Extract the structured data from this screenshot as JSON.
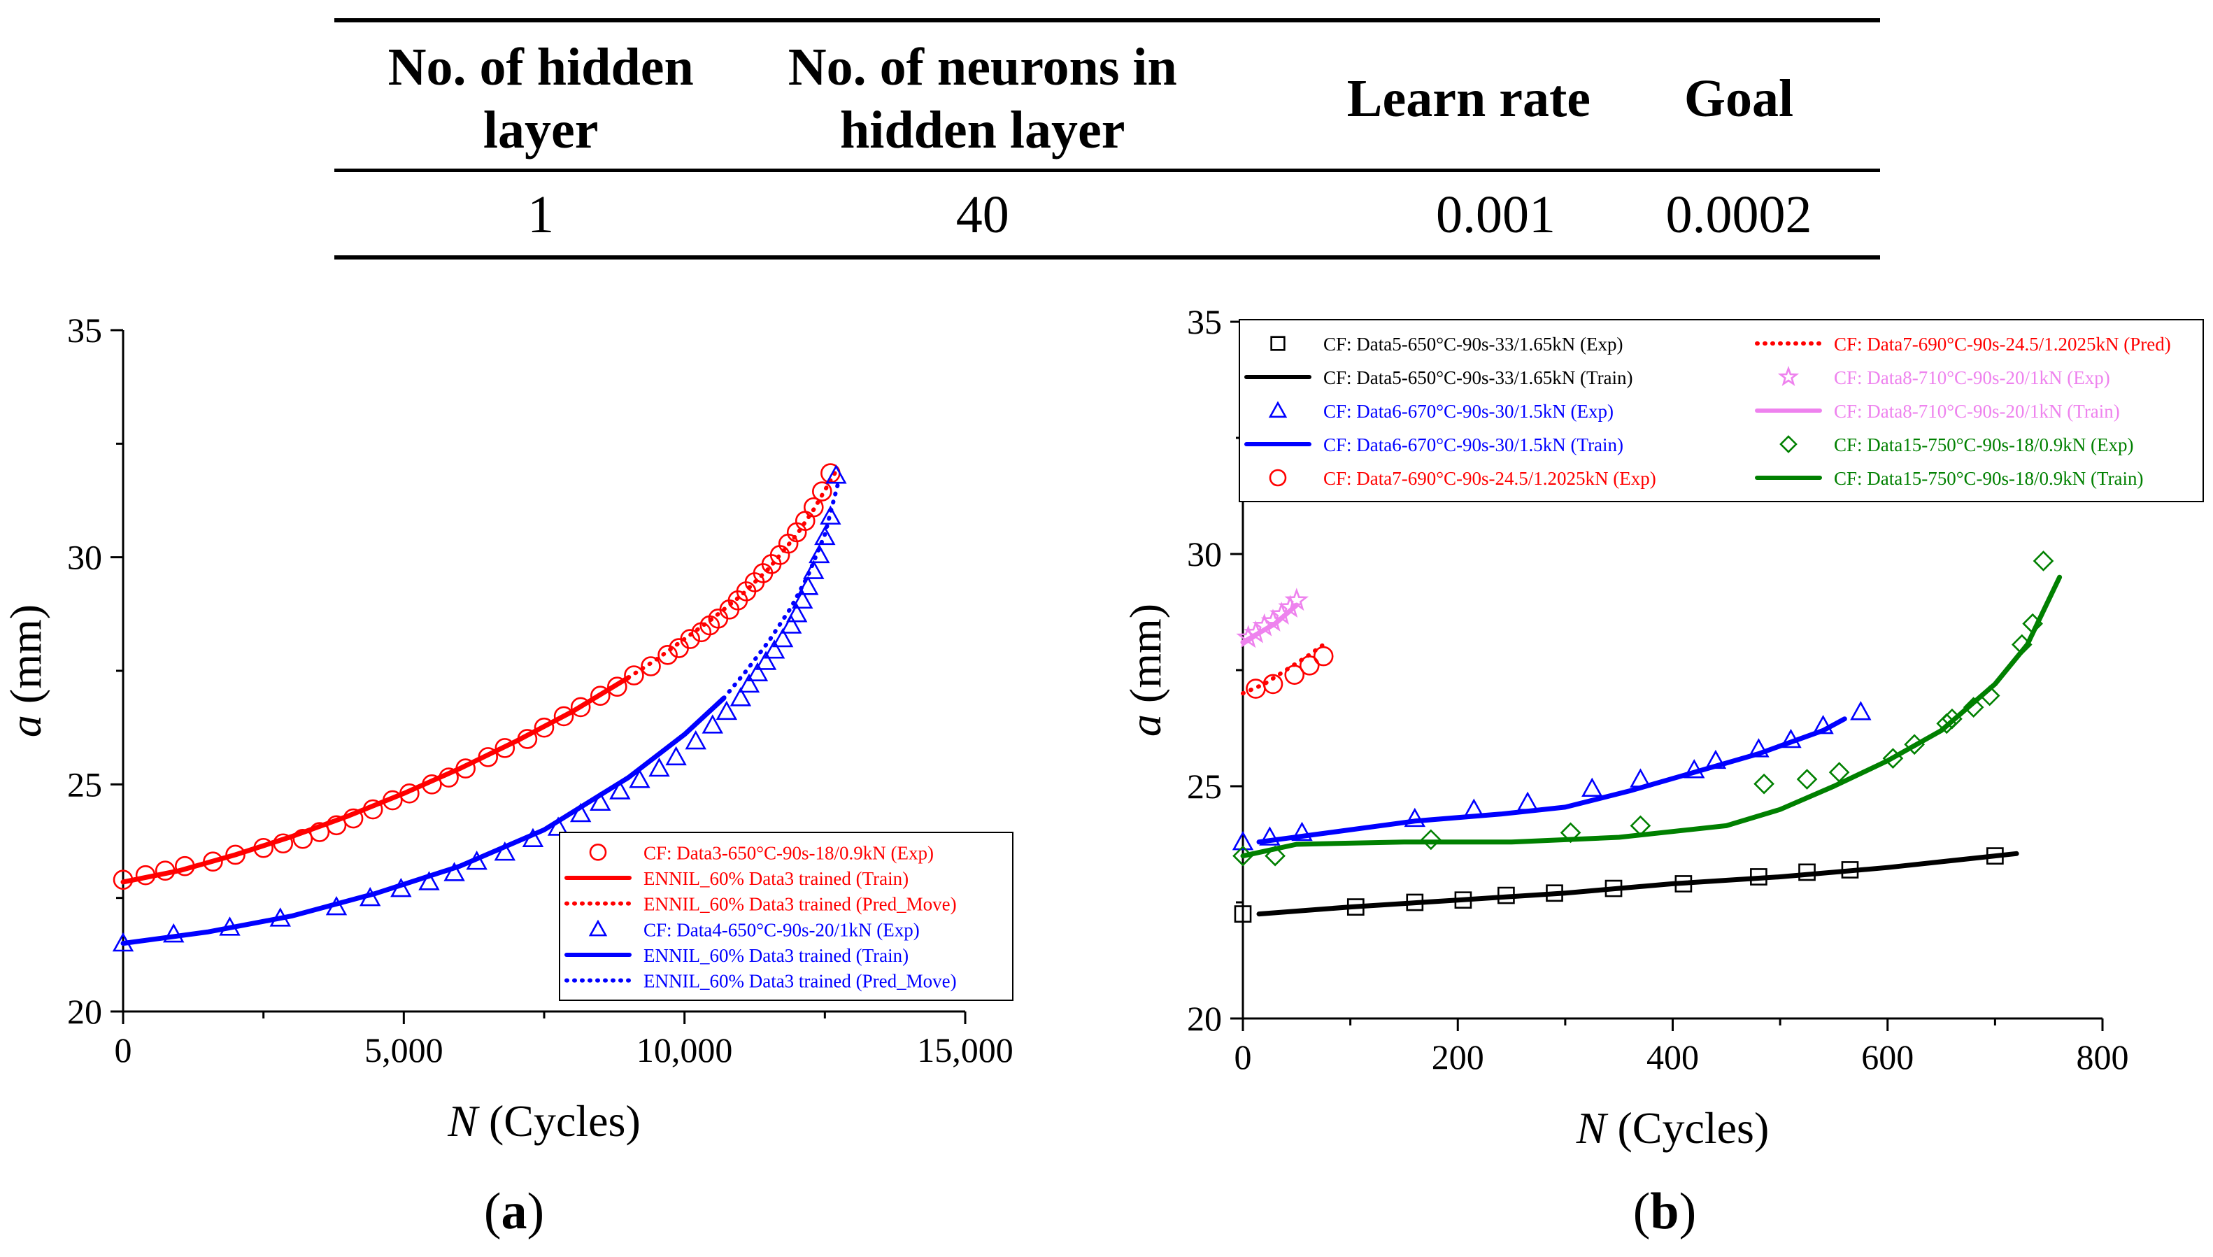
{
  "table": {
    "headers": [
      "No. of hidden layer",
      "No. of neurons in hidden layer",
      "Learn rate",
      "Goal"
    ],
    "row": [
      "1",
      "40",
      "0.001",
      "0.0002"
    ]
  },
  "chart_data": [
    {
      "type": "line",
      "panel_label": "(a)",
      "xlabel_var": "N",
      "xlabel_unit": "(Cycles)",
      "ylabel_var": "a",
      "ylabel_unit": "(mm)",
      "xlim": [
        0,
        15000
      ],
      "ylim": [
        20,
        35
      ],
      "xticks": [
        0,
        5000,
        10000,
        15000
      ],
      "xtick_labels": [
        "0",
        "5,000",
        "10,000",
        "15,000"
      ],
      "yticks": [
        20,
        25,
        30,
        35
      ],
      "ytick_labels": [
        "20",
        "25",
        "30",
        "35"
      ],
      "legend_position": "bottom-right",
      "series": [
        {
          "name": "CF: Data3-650°C-90s-18/0.9kN (Exp)",
          "kind": "marker",
          "marker": "circle",
          "color": "#ff0000",
          "x": [
            0,
            400,
            750,
            1100,
            1600,
            2000,
            2500,
            2850,
            3200,
            3500,
            3800,
            4100,
            4450,
            4800,
            5100,
            5500,
            5800,
            6100,
            6500,
            6800,
            7200,
            7500,
            7850,
            8150,
            8500,
            8800,
            9100,
            9400,
            9700,
            9900,
            10100,
            10300,
            10450,
            10600,
            10800,
            10950,
            11100,
            11250,
            11400,
            11550,
            11700,
            11850,
            12000,
            12150,
            12300,
            12450,
            12600
          ],
          "y": [
            22.9,
            23.0,
            23.1,
            23.2,
            23.3,
            23.45,
            23.6,
            23.7,
            23.8,
            23.95,
            24.1,
            24.25,
            24.45,
            24.65,
            24.8,
            25.0,
            25.15,
            25.35,
            25.6,
            25.8,
            26.0,
            26.25,
            26.5,
            26.7,
            26.95,
            27.15,
            27.4,
            27.6,
            27.85,
            28.0,
            28.2,
            28.35,
            28.5,
            28.65,
            28.85,
            29.05,
            29.25,
            29.45,
            29.65,
            29.85,
            30.05,
            30.3,
            30.55,
            30.8,
            31.1,
            31.45,
            31.85
          ]
        },
        {
          "name": "ENNIL_60% Data3 trained (Train)",
          "kind": "line",
          "style": "solid",
          "color": "#ff0000",
          "x": [
            0,
            1000,
            2000,
            3000,
            4000,
            5000,
            6000,
            7000,
            8000,
            9000
          ],
          "y": [
            22.85,
            23.1,
            23.45,
            23.85,
            24.3,
            24.8,
            25.35,
            25.95,
            26.6,
            27.35
          ]
        },
        {
          "name": "ENNIL_60% Data3 trained (Pred_Move)",
          "kind": "line",
          "style": "dotted",
          "color": "#ff0000",
          "x": [
            9000,
            9500,
            10000,
            10500,
            11000,
            11500,
            12000,
            12300,
            12700
          ],
          "y": [
            27.35,
            27.75,
            28.2,
            28.65,
            29.15,
            29.75,
            30.5,
            31.05,
            31.9
          ]
        },
        {
          "name": "CF: Data4-650°C-90s-20/1kN (Exp)",
          "kind": "marker",
          "marker": "triangle",
          "color": "#0000ff",
          "x": [
            0,
            900,
            1900,
            2800,
            3800,
            4400,
            4950,
            5450,
            5900,
            6300,
            6800,
            7300,
            7750,
            8150,
            8500,
            8850,
            9200,
            9550,
            9850,
            10200,
            10500,
            10750,
            11000,
            11150,
            11300,
            11450,
            11600,
            11750,
            11900,
            12000,
            12100,
            12200,
            12300,
            12400,
            12500,
            12600,
            12700
          ],
          "y": [
            21.5,
            21.7,
            21.85,
            22.05,
            22.3,
            22.5,
            22.7,
            22.85,
            23.05,
            23.3,
            23.5,
            23.8,
            24.05,
            24.35,
            24.6,
            24.85,
            25.1,
            25.35,
            25.6,
            25.95,
            26.3,
            26.6,
            26.9,
            27.2,
            27.45,
            27.7,
            27.95,
            28.2,
            28.5,
            28.75,
            29.05,
            29.35,
            29.7,
            30.05,
            30.45,
            30.9,
            31.8
          ]
        },
        {
          "name": "ENNIL_60% Data3 trained (Train)",
          "kind": "line",
          "style": "solid",
          "color": "#0000ff",
          "x": [
            0,
            1500,
            3000,
            4500,
            6000,
            7500,
            9000,
            10000,
            10700
          ],
          "y": [
            21.5,
            21.75,
            22.1,
            22.6,
            23.2,
            24.0,
            25.15,
            26.1,
            26.9
          ]
        },
        {
          "name": "ENNIL_60% Data3 trained (Pred_Move)",
          "kind": "line",
          "style": "dotted",
          "color": "#0000ff",
          "x": [
            10700,
            11100,
            11500,
            11900,
            12200,
            12500,
            12750
          ],
          "y": [
            26.9,
            27.5,
            28.15,
            28.9,
            29.6,
            30.5,
            31.7
          ]
        }
      ]
    },
    {
      "type": "line",
      "panel_label": "(b)",
      "xlabel_var": "N",
      "xlabel_unit": "(Cycles)",
      "ylabel_var": "a",
      "ylabel_unit": "(mm)",
      "xlim": [
        0,
        800
      ],
      "ylim": [
        20,
        35
      ],
      "xticks": [
        0,
        200,
        400,
        600,
        800
      ],
      "xtick_labels": [
        "0",
        "200",
        "400",
        "600",
        "800"
      ],
      "yticks": [
        20,
        25,
        30,
        35
      ],
      "ytick_labels": [
        "20",
        "25",
        "30",
        "35"
      ],
      "legend_position": "top",
      "series": [
        {
          "name": "CF: Data5-650°C-90s-33/1.65kN (Exp)",
          "kind": "marker",
          "marker": "square",
          "color": "#000000",
          "x": [
            0,
            105,
            160,
            205,
            245,
            290,
            345,
            410,
            480,
            525,
            565,
            700
          ],
          "y": [
            22.25,
            22.4,
            22.5,
            22.55,
            22.65,
            22.7,
            22.8,
            22.9,
            23.05,
            23.15,
            23.2,
            23.5
          ]
        },
        {
          "name": "CF: Data5-650°C-90s-33/1.65kN (Train)",
          "kind": "line",
          "style": "solid",
          "color": "#000000",
          "x": [
            15,
            100,
            200,
            300,
            400,
            500,
            600,
            720
          ],
          "y": [
            22.25,
            22.4,
            22.55,
            22.7,
            22.9,
            23.05,
            23.25,
            23.55
          ]
        },
        {
          "name": "CF: Data6-670°C-90s-30/1.5kN (Exp)",
          "kind": "marker",
          "marker": "triangle",
          "color": "#0000ff",
          "x": [
            0,
            25,
            55,
            160,
            215,
            265,
            325,
            370,
            420,
            440,
            480,
            510,
            540,
            575
          ],
          "y": [
            23.8,
            23.9,
            24.0,
            24.3,
            24.5,
            24.65,
            24.95,
            25.15,
            25.35,
            25.55,
            25.8,
            26.0,
            26.3,
            26.6
          ]
        },
        {
          "name": "CF: Data6-670°C-90s-30/1.5kN (Train)",
          "kind": "line",
          "style": "solid",
          "color": "#0000ff",
          "x": [
            15,
            80,
            160,
            240,
            300,
            360,
            420,
            480,
            540,
            560
          ],
          "y": [
            23.8,
            24.0,
            24.25,
            24.4,
            24.55,
            24.9,
            25.3,
            25.7,
            26.2,
            26.45
          ]
        },
        {
          "name": "CF: Data7-690°C-90s-24.5/1.2025kN (Exp)",
          "kind": "marker",
          "marker": "circle",
          "color": "#ff0000",
          "x": [
            12,
            28,
            48,
            62,
            75
          ],
          "y": [
            27.1,
            27.2,
            27.4,
            27.6,
            27.8
          ]
        },
        {
          "name": "CF: Data7-690°C-90s-24.5/1.2025kN (Pred)",
          "kind": "line",
          "style": "dotted",
          "color": "#ff0000",
          "x": [
            0,
            20,
            40,
            60,
            78
          ],
          "y": [
            27.0,
            27.2,
            27.5,
            27.8,
            28.1
          ]
        },
        {
          "name": "CF: Data8-710°C-90s-20/1kN (Exp)",
          "kind": "marker",
          "marker": "star",
          "color": "#ee82ee",
          "x": [
            5,
            12,
            20,
            28,
            36,
            44,
            50
          ],
          "y": [
            28.2,
            28.3,
            28.45,
            28.55,
            28.7,
            28.85,
            29.0
          ]
        },
        {
          "name": "CF: Data8-710°C-90s-20/1kN (Train)",
          "kind": "line",
          "style": "solid",
          "color": "#ee82ee",
          "x": [
            0,
            15,
            30,
            50
          ],
          "y": [
            28.1,
            28.3,
            28.5,
            28.9
          ]
        },
        {
          "name": "CF: Data15-750°C-90s-18/0.9kN (Exp)",
          "kind": "marker",
          "marker": "diamond",
          "color": "#008000",
          "x": [
            0,
            30,
            175,
            305,
            370,
            485,
            525,
            555,
            605,
            625,
            655,
            660,
            680,
            695,
            725,
            735,
            745
          ],
          "y": [
            23.5,
            23.5,
            23.85,
            24.0,
            24.15,
            25.05,
            25.15,
            25.3,
            25.6,
            25.9,
            26.35,
            26.45,
            26.7,
            26.95,
            28.05,
            28.5,
            29.85
          ]
        },
        {
          "name": "CF: Data15-750°C-90s-18/0.9kN (Train)",
          "kind": "line",
          "style": "solid",
          "color": "#008000",
          "x": [
            0,
            50,
            150,
            250,
            350,
            450,
            500,
            550,
            600,
            650,
            700,
            730,
            760
          ],
          "y": [
            23.5,
            23.75,
            23.8,
            23.8,
            23.9,
            24.15,
            24.5,
            25.0,
            25.55,
            26.2,
            27.2,
            28.05,
            29.5
          ]
        }
      ]
    }
  ]
}
